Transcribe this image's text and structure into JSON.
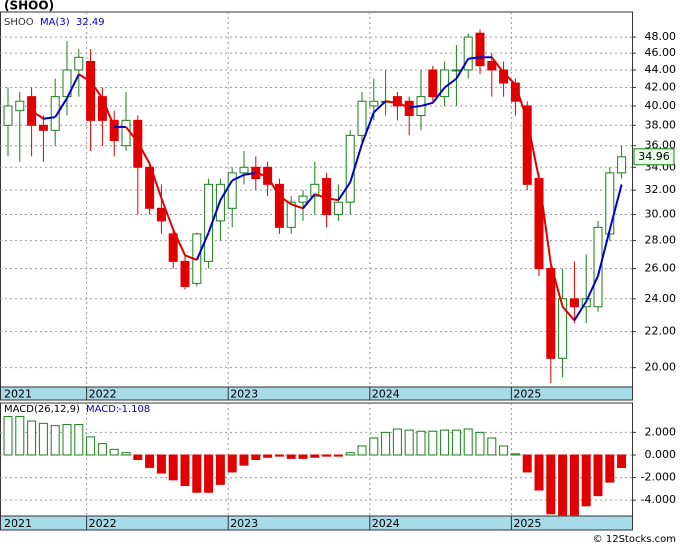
{
  "chart_data": [
    {
      "type": "candlestick",
      "title": "(SHOO)",
      "log_scale": true,
      "grid": true,
      "categories": [
        "2021",
        null,
        null,
        null,
        null,
        null,
        null,
        "2022",
        null,
        null,
        null,
        null,
        null,
        null,
        null,
        null,
        null,
        null,
        null,
        "2023",
        null,
        null,
        null,
        null,
        null,
        null,
        null,
        null,
        null,
        null,
        null,
        "2024",
        null,
        null,
        null,
        null,
        null,
        null,
        null,
        null,
        null,
        null,
        null,
        "2025",
        null,
        null,
        null,
        null,
        null,
        null,
        null,
        null,
        null
      ],
      "series": [
        {
          "name": "SHOO",
          "up_color": "#1a7f1a",
          "down_color": "#e00000",
          "open": [
            38,
            39.5,
            41,
            38,
            37.5,
            41,
            44,
            45,
            41,
            38.5,
            36,
            38.5,
            34,
            30.5,
            28.5,
            26.5,
            25,
            26.5,
            29.5,
            30.5,
            33.5,
            34,
            34,
            32.5,
            29,
            31,
            31.5,
            33,
            30,
            31,
            37,
            40,
            40.5,
            41,
            40.5,
            39,
            44,
            41,
            44,
            44,
            48.5,
            45,
            44,
            42.5,
            40,
            33,
            26,
            20.5,
            24,
            23.5,
            23.5,
            28.5,
            33.5
          ],
          "high": [
            42,
            41.5,
            42,
            39,
            43,
            47.5,
            46.5,
            46.5,
            42,
            39.5,
            41.5,
            39,
            34.5,
            32.5,
            29,
            27,
            28.6,
            33,
            33,
            34,
            35.5,
            35,
            34.5,
            33,
            31.5,
            32,
            34.5,
            33.5,
            32.5,
            37.5,
            41.5,
            43,
            44,
            41.5,
            41,
            44,
            44.5,
            45,
            47,
            48.5,
            49,
            46,
            45,
            43,
            40.5,
            33.5,
            26.5,
            26,
            26.5,
            27,
            29.5,
            34,
            36
          ],
          "low": [
            35,
            34.5,
            35,
            34.5,
            36,
            39,
            41,
            35.5,
            36,
            35,
            35.5,
            30,
            30,
            28.5,
            26,
            24.6,
            24.8,
            26,
            28,
            29,
            32.5,
            32,
            31.5,
            28.5,
            28.5,
            29.5,
            30,
            29,
            29.5,
            30,
            36,
            38.5,
            39,
            38.5,
            37,
            37.5,
            40.5,
            40,
            40,
            43,
            43.5,
            41,
            41,
            39,
            32,
            25.5,
            19.2,
            19.5,
            22.5,
            22.5,
            23.2,
            28,
            33
          ],
          "close": [
            40,
            40.5,
            38,
            37.5,
            41,
            44,
            45.5,
            38.5,
            38.5,
            36.5,
            38.5,
            34,
            30.5,
            29.5,
            26.5,
            24.8,
            28.5,
            32.5,
            32.5,
            33.5,
            34,
            33,
            32.5,
            29,
            31,
            31.5,
            32.5,
            30,
            31,
            37,
            40.5,
            40.5,
            40.5,
            40,
            39,
            41,
            41,
            44,
            44,
            48,
            44.5,
            44,
            42.5,
            40.5,
            32.5,
            26,
            20.5,
            24,
            23.5,
            24,
            29,
            33.5,
            34.96
          ]
        }
      ],
      "ma": {
        "name": "MA(3)",
        "up_color": "#0000cc",
        "down_color": "#e00000",
        "values": [
          null,
          null,
          39.5,
          38.67,
          38.83,
          40.83,
          43.5,
          42.67,
          40.83,
          37.83,
          37.83,
          36.33,
          34.33,
          31.33,
          28.83,
          26.93,
          26.6,
          28.6,
          31.17,
          32.83,
          33.33,
          33.5,
          33.17,
          31.5,
          30.83,
          30.5,
          31.67,
          31.33,
          31.17,
          32.67,
          36.17,
          39.33,
          40.5,
          40.33,
          39.83,
          40,
          40.33,
          42,
          43,
          45.33,
          45.5,
          45.5,
          43.67,
          42.33,
          38.5,
          33,
          26.33,
          23.5,
          22.67,
          23.83,
          25.5,
          28.83,
          32.49
        ]
      },
      "ylim": [
        19,
        51.3
      ],
      "yticks": [
        {
          "value": 48,
          "label": "48.00"
        },
        {
          "value": 46,
          "label": "46.00"
        },
        {
          "value": 44,
          "label": "44.00"
        },
        {
          "value": 42,
          "label": "42.00"
        },
        {
          "value": 40,
          "label": "40.00"
        },
        {
          "value": 38,
          "label": "38.00"
        },
        {
          "value": 36,
          "label": "36.00"
        },
        {
          "value": 34,
          "label": "34.00"
        },
        {
          "value": 32,
          "label": "32.00"
        },
        {
          "value": 30,
          "label": "30.00"
        },
        {
          "value": 28,
          "label": "28.00"
        },
        {
          "value": 26,
          "label": "26.00"
        },
        {
          "value": 24,
          "label": "24.00"
        },
        {
          "value": 22,
          "label": "22.00"
        },
        {
          "value": 20,
          "label": "20.00"
        }
      ]
    },
    {
      "type": "bar",
      "title": "MACD(26,12,9)",
      "grid": true,
      "categories": [
        "2021",
        null,
        null,
        null,
        null,
        null,
        null,
        "2022",
        null,
        null,
        null,
        null,
        null,
        null,
        null,
        null,
        null,
        null,
        null,
        "2023",
        null,
        null,
        null,
        null,
        null,
        null,
        null,
        null,
        null,
        null,
        null,
        "2024",
        null,
        null,
        null,
        null,
        null,
        null,
        null,
        null,
        null,
        null,
        null,
        "2025",
        null,
        null,
        null,
        null,
        null,
        null,
        null,
        null,
        null
      ],
      "series": [
        {
          "name": "MACD:",
          "color": "#0000cc",
          "up_color": "#1a7f1a",
          "down_color": "#e00000",
          "values": [
            3.4,
            3.4,
            3.0,
            2.8,
            2.6,
            2.7,
            2.7,
            1.6,
            1.0,
            0.5,
            0.2,
            -0.4,
            -1.1,
            -1.6,
            -2.2,
            -2.7,
            -3.3,
            -3.3,
            -2.6,
            -1.5,
            -0.9,
            -0.4,
            -0.2,
            -0.1,
            -0.3,
            -0.3,
            -0.2,
            -0.1,
            -0.1,
            0.2,
            0.8,
            1.5,
            2.0,
            2.3,
            2.2,
            2.1,
            2.1,
            2.2,
            2.2,
            2.3,
            2.0,
            1.5,
            0.8,
            0.1,
            -1.5,
            -3.1,
            -5.2,
            -5.3,
            -5.3,
            -4.5,
            -3.6,
            -2.4,
            -1.108
          ]
        }
      ],
      "ylim": [
        -5.4,
        4.6
      ],
      "yticks": [
        {
          "value": 2,
          "label": "2.000"
        },
        {
          "value": 0,
          "label": "0.000"
        },
        {
          "value": -2,
          "label": "-2.000"
        },
        {
          "value": -4,
          "label": "-4.000"
        }
      ]
    }
  ],
  "copyright": "© 12Stocks.com"
}
